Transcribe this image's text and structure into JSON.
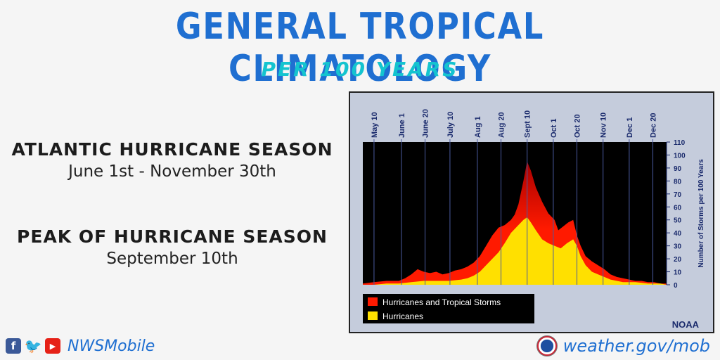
{
  "header": {
    "title": "GENERAL TROPICAL CLIMATOLOGY",
    "subtitle": "PER 100 YEARS"
  },
  "info": [
    {
      "heading": "ATLANTIC HURRICANE SEASON",
      "value": "June 1st - November 30th"
    },
    {
      "heading": "PEAK OF HURRICANE SEASON",
      "value": "September 10th"
    }
  ],
  "footer": {
    "handle": "NWSMobile",
    "url": "weather.gov/mob",
    "icons": [
      "facebook-icon",
      "twitter-icon",
      "youtube-icon",
      "nws-seal-icon"
    ]
  },
  "colors": {
    "title": "#1f6fd1",
    "subtitle": "#14c4cf",
    "storms": "#ff1a00",
    "storms_dark": "#a80000",
    "hurricanes": "#ffe000",
    "plot_bg": "#000000",
    "panel_bg": "#c5ccdc",
    "axis_text": "#1a2a6c"
  },
  "chart_data": {
    "type": "area",
    "ylabel": "Number of Storms per 100 Years",
    "ylim": [
      0,
      110
    ],
    "yticks": [
      0,
      10,
      20,
      30,
      40,
      50,
      60,
      70,
      80,
      90,
      100,
      110
    ],
    "xlim_day": [
      121,
      365
    ],
    "date_ticks": [
      {
        "label": "May 10",
        "day": 130
      },
      {
        "label": "June 1",
        "day": 152
      },
      {
        "label": "June 20",
        "day": 171
      },
      {
        "label": "July 10",
        "day": 191
      },
      {
        "label": "Aug 1",
        "day": 213
      },
      {
        "label": "Aug 20",
        "day": 232
      },
      {
        "label": "Sept 10",
        "day": 253
      },
      {
        "label": "Oct 1",
        "day": 274
      },
      {
        "label": "Oct 20",
        "day": 293
      },
      {
        "label": "Nov 10",
        "day": 314
      },
      {
        "label": "Dec 1",
        "day": 335
      },
      {
        "label": "Dec 20",
        "day": 354
      }
    ],
    "series": [
      {
        "name": "Hurricanes and Tropical Storms",
        "color": "#ff1a00",
        "day": [
          121,
          130,
          140,
          150,
          155,
          160,
          165,
          170,
          175,
          180,
          185,
          190,
          195,
          200,
          205,
          210,
          215,
          220,
          225,
          230,
          235,
          240,
          243,
          246,
          250,
          253,
          256,
          260,
          265,
          270,
          275,
          278,
          282,
          286,
          290,
          293,
          296,
          300,
          305,
          310,
          315,
          320,
          325,
          330,
          335,
          340,
          345,
          350,
          355,
          360,
          365
        ],
        "values": [
          1,
          2,
          3,
          3,
          5,
          8,
          12,
          10,
          9,
          10,
          8,
          9,
          11,
          12,
          14,
          17,
          22,
          30,
          38,
          44,
          46,
          50,
          54,
          62,
          80,
          95,
          88,
          75,
          64,
          55,
          50,
          42,
          45,
          48,
          50,
          38,
          30,
          22,
          18,
          15,
          12,
          8,
          6,
          5,
          4,
          3,
          3,
          2,
          2,
          1,
          1
        ]
      },
      {
        "name": "Hurricanes",
        "color": "#ffe000",
        "day": [
          121,
          130,
          140,
          150,
          160,
          170,
          180,
          190,
          200,
          205,
          210,
          215,
          220,
          225,
          230,
          235,
          240,
          245,
          250,
          253,
          256,
          260,
          265,
          270,
          275,
          280,
          285,
          290,
          293,
          296,
          300,
          305,
          310,
          315,
          320,
          330,
          340,
          350,
          360,
          365
        ],
        "values": [
          0,
          0,
          1,
          1,
          2,
          3,
          3,
          3,
          4,
          5,
          7,
          10,
          15,
          20,
          25,
          32,
          40,
          45,
          50,
          52,
          48,
          42,
          35,
          32,
          30,
          28,
          32,
          35,
          30,
          22,
          15,
          10,
          8,
          6,
          4,
          2,
          2,
          1,
          1,
          0
        ]
      }
    ],
    "legend": "bottom-left",
    "attribution": "NOAA"
  }
}
